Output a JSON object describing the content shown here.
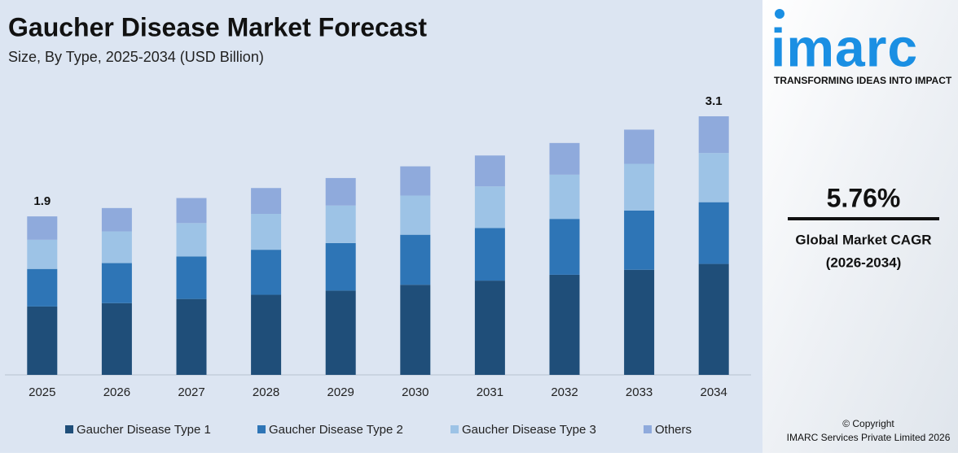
{
  "chart_data": {
    "type": "stacked-bar",
    "title": "Gaucher Disease Market Forecast",
    "subtitle": "Size, By Type, 2025-2034 (USD Billion)",
    "categories": [
      "2025",
      "2026",
      "2027",
      "2028",
      "2029",
      "2030",
      "2031",
      "2032",
      "2033",
      "2034"
    ],
    "series": [
      {
        "name": "Gaucher Disease Type 1",
        "color": "#1f4e79",
        "values": [
          0.82,
          0.86,
          0.91,
          0.96,
          1.01,
          1.08,
          1.13,
          1.2,
          1.26,
          1.33
        ]
      },
      {
        "name": "Gaucher Disease Type 2",
        "color": "#2e75b6",
        "values": [
          0.45,
          0.48,
          0.51,
          0.54,
          0.57,
          0.6,
          0.63,
          0.67,
          0.71,
          0.74
        ]
      },
      {
        "name": "Gaucher Disease Type 3",
        "color": "#9dc3e6",
        "values": [
          0.35,
          0.38,
          0.4,
          0.43,
          0.45,
          0.47,
          0.5,
          0.53,
          0.56,
          0.59
        ]
      },
      {
        "name": "Others",
        "color": "#8faadc",
        "values": [
          0.28,
          0.28,
          0.3,
          0.31,
          0.33,
          0.35,
          0.37,
          0.38,
          0.41,
          0.44
        ]
      }
    ],
    "totals": [
      1.9,
      null,
      null,
      null,
      null,
      null,
      null,
      null,
      null,
      3.1
    ],
    "ylim": [
      0,
      3.3
    ],
    "legend": "bottom"
  },
  "branding": {
    "logo": "imarc",
    "tagline": "TRANSFORMING IDEAS INTO IMPACT",
    "cagr": "5.76%",
    "cagr_label": "Global Market CAGR",
    "cagr_period": "(2026-2034)",
    "copyright": "© Copyright",
    "company": "IMARC Services Private Limited 2026"
  }
}
